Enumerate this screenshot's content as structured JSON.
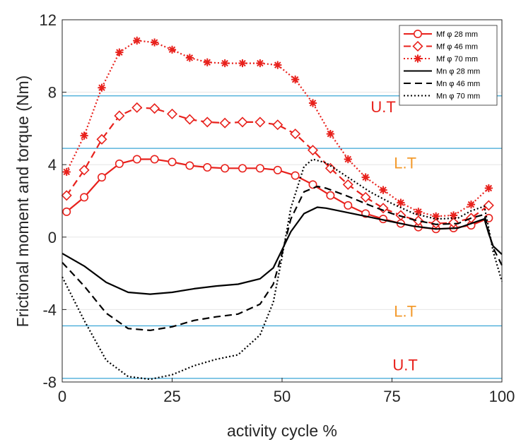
{
  "chart_data": {
    "type": "line",
    "title": "",
    "xlabel": "activity cycle %",
    "ylabel": "Frictional moment and torque (Nm)",
    "xlim": [
      0,
      100
    ],
    "ylim": [
      -8,
      12
    ],
    "xticks": [
      0,
      25,
      50,
      75,
      100
    ],
    "yticks": [
      -8,
      -4,
      0,
      4,
      8,
      12
    ],
    "grid": "horizontal",
    "legend_position": "top-right",
    "colors": {
      "red": "#e8211c",
      "black": "#000000",
      "threshold": "#3aa6d6",
      "lt_label": "#f39a2c",
      "axis": "#262626"
    },
    "series": [
      {
        "name": "Mf φ 28 mm",
        "color": "#e8211c",
        "dash": "solid",
        "marker": "circle",
        "x": [
          1,
          5,
          9,
          13,
          17,
          21,
          25,
          29,
          33,
          37,
          41,
          45,
          49,
          53,
          57,
          61,
          65,
          69,
          73,
          77,
          81,
          85,
          89,
          93,
          97
        ],
        "y": [
          1.4,
          2.2,
          3.3,
          4.05,
          4.3,
          4.3,
          4.15,
          3.95,
          3.85,
          3.8,
          3.8,
          3.8,
          3.7,
          3.4,
          2.9,
          2.3,
          1.75,
          1.3,
          1.0,
          0.75,
          0.55,
          0.45,
          0.5,
          0.65,
          1.05
        ]
      },
      {
        "name": "Mf φ 46 mm",
        "color": "#e8211c",
        "dash": "dashed",
        "marker": "diamond",
        "x": [
          1,
          5,
          9,
          13,
          17,
          21,
          25,
          29,
          33,
          37,
          41,
          45,
          49,
          53,
          57,
          61,
          65,
          69,
          73,
          77,
          81,
          85,
          89,
          93,
          97
        ],
        "y": [
          2.3,
          3.7,
          5.4,
          6.7,
          7.15,
          7.1,
          6.8,
          6.5,
          6.35,
          6.3,
          6.35,
          6.35,
          6.2,
          5.7,
          4.8,
          3.8,
          2.9,
          2.2,
          1.6,
          1.2,
          0.9,
          0.75,
          0.8,
          1.05,
          1.75
        ]
      },
      {
        "name": "Mf φ 70 mm",
        "color": "#e8211c",
        "dash": "dotted",
        "marker": "star",
        "x": [
          1,
          5,
          9,
          13,
          17,
          21,
          25,
          29,
          33,
          37,
          41,
          45,
          49,
          53,
          57,
          61,
          65,
          69,
          73,
          77,
          81,
          85,
          89,
          93,
          97
        ],
        "y": [
          3.6,
          5.6,
          8.25,
          10.2,
          10.85,
          10.75,
          10.35,
          9.9,
          9.65,
          9.6,
          9.6,
          9.6,
          9.5,
          8.7,
          7.4,
          5.7,
          4.3,
          3.3,
          2.6,
          1.9,
          1.4,
          1.15,
          1.2,
          1.8,
          2.7
        ]
      },
      {
        "name": "Mn φ 28 mm",
        "color": "#000000",
        "dash": "solid",
        "marker": "none",
        "x": [
          0,
          5,
          10,
          15,
          20,
          25,
          30,
          35,
          40,
          45,
          48,
          50,
          52,
          55,
          58,
          60,
          65,
          70,
          75,
          80,
          85,
          90,
          93,
          96,
          97,
          98,
          100
        ],
        "y": [
          -0.9,
          -1.6,
          -2.5,
          -3.05,
          -3.15,
          -3.05,
          -2.85,
          -2.7,
          -2.6,
          -2.3,
          -1.7,
          -0.7,
          0.3,
          1.3,
          1.65,
          1.6,
          1.35,
          1.1,
          0.85,
          0.6,
          0.45,
          0.5,
          0.75,
          1.0,
          0.2,
          -0.5,
          -0.95
        ]
      },
      {
        "name": "Mn φ 46 mm",
        "color": "#000000",
        "dash": "dashed",
        "marker": "none",
        "x": [
          0,
          5,
          10,
          15,
          20,
          25,
          30,
          35,
          40,
          45,
          48,
          50,
          52,
          55,
          58,
          60,
          65,
          70,
          75,
          80,
          85,
          90,
          93,
          96,
          97,
          98,
          100
        ],
        "y": [
          -1.4,
          -2.7,
          -4.2,
          -5.05,
          -5.15,
          -4.95,
          -4.6,
          -4.4,
          -4.25,
          -3.7,
          -2.6,
          -0.9,
          1.0,
          2.5,
          2.8,
          2.7,
          2.25,
          1.75,
          1.3,
          0.95,
          0.7,
          0.75,
          1.05,
          1.25,
          0.3,
          -0.6,
          -1.55
        ]
      },
      {
        "name": "Mn φ 70 mm",
        "color": "#000000",
        "dash": "dotted",
        "marker": "none",
        "x": [
          0,
          5,
          10,
          15,
          20,
          25,
          30,
          35,
          40,
          45,
          48,
          50,
          52,
          55,
          57,
          60,
          65,
          70,
          75,
          80,
          85,
          90,
          93,
          96,
          97,
          98,
          100
        ],
        "y": [
          -2.2,
          -4.6,
          -6.8,
          -7.7,
          -7.85,
          -7.6,
          -7.1,
          -6.75,
          -6.5,
          -5.4,
          -3.6,
          -1.1,
          1.6,
          3.9,
          4.3,
          4.1,
          3.3,
          2.5,
          1.85,
          1.3,
          1.0,
          1.05,
          1.45,
          1.7,
          0.5,
          -0.8,
          -2.45
        ]
      }
    ],
    "threshold_lines": [
      7.8,
      4.9,
      -4.9,
      -7.8
    ],
    "annotations": [
      {
        "text": "U.T",
        "x": 73,
        "y": 6.9,
        "color": "#e8211c"
      },
      {
        "text": "L.T",
        "x": 78,
        "y": 3.8,
        "color": "#f39a2c"
      },
      {
        "text": "L.T",
        "x": 78,
        "y": -4.4,
        "color": "#f39a2c"
      },
      {
        "text": "U.T",
        "x": 78,
        "y": -7.35,
        "color": "#e8211c"
      }
    ]
  }
}
